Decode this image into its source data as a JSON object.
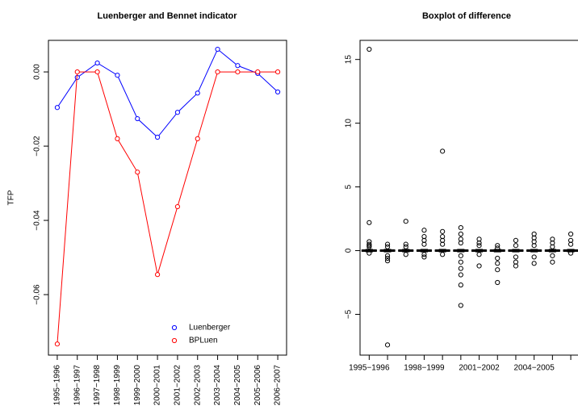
{
  "chart_data": [
    {
      "type": "line",
      "title": "Luenberger and Bennet indicator",
      "y_label": "TFP",
      "categories": [
        "1995−1996",
        "1996−1997",
        "1997−1998",
        "1998−1999",
        "1999−2000",
        "2000−2001",
        "2001−2002",
        "2002−2003",
        "2003−2004",
        "2004−2005",
        "2005−2006",
        "2006−2007"
      ],
      "series": [
        {
          "name": "Luenberger",
          "color": "#0000ff",
          "values": [
            -0.0096,
            -0.0015,
            0.0024,
            -0.0009,
            -0.0126,
            -0.0176,
            -0.0109,
            -0.0057,
            0.0061,
            0.0017,
            -0.0004,
            -0.0054
          ]
        },
        {
          "name": "BPLuen",
          "color": "#ff0000",
          "values": [
            -0.0733,
            0,
            0,
            -0.018,
            -0.027,
            -0.0546,
            -0.0363,
            -0.018,
            0,
            0,
            0,
            0
          ]
        }
      ],
      "ylim": [
        -0.0763,
        0.0085
      ],
      "yticks": [
        {
          "value": 0,
          "label": "0.00"
        },
        {
          "value": -0.02,
          "label": "−0.02"
        },
        {
          "value": -0.04,
          "label": "−0.04"
        },
        {
          "value": -0.06,
          "label": "−0.06"
        }
      ],
      "legend": "bottomright"
    },
    {
      "type": "box",
      "title": "Boxplot of difference",
      "color": "#000000",
      "categories": [
        "1995−1996",
        null,
        null,
        "1998−1999",
        null,
        null,
        "2001−2002",
        null,
        null,
        "2004−2005",
        null,
        null
      ],
      "boxes": [
        {
          "q1": -0.05,
          "median": 0,
          "q3": 0.05,
          "whisker_low": -0.1,
          "whisker_high": 0.1,
          "outliers": [
            15.8,
            2.2,
            0.7,
            0.5,
            0.4,
            0.3,
            -0.2
          ]
        },
        {
          "q1": -0.05,
          "median": 0,
          "q3": 0.05,
          "whisker_low": -0.1,
          "whisker_high": 0.1,
          "outliers": [
            0.5,
            0.3,
            -0.4,
            -0.6,
            -0.8,
            -7.4
          ]
        },
        {
          "q1": -0.05,
          "median": 0,
          "q3": 0.05,
          "whisker_low": -0.1,
          "whisker_high": 0.1,
          "outliers": [
            2.3,
            0.5,
            0.3,
            -0.3
          ]
        },
        {
          "q1": -0.05,
          "median": 0,
          "q3": 0.05,
          "whisker_low": -0.1,
          "whisker_high": 0.1,
          "outliers": [
            1.6,
            1.1,
            0.8,
            0.5,
            -0.3,
            -0.5
          ]
        },
        {
          "q1": -0.05,
          "median": 0,
          "q3": 0.05,
          "whisker_low": -0.1,
          "whisker_high": 0.1,
          "outliers": [
            7.8,
            1.5,
            1.1,
            0.8,
            0.5,
            -0.3
          ]
        },
        {
          "q1": -0.05,
          "median": 0,
          "q3": 0.05,
          "whisker_low": -0.1,
          "whisker_high": 0.1,
          "outliers": [
            1.8,
            1.3,
            0.9,
            0.6,
            -0.4,
            -0.9,
            -1.4,
            -1.9,
            -2.7,
            -4.3
          ]
        },
        {
          "q1": -0.05,
          "median": 0,
          "q3": 0.05,
          "whisker_low": -0.1,
          "whisker_high": 0.1,
          "outliers": [
            0.9,
            0.6,
            0.4,
            -0.3,
            -1.2
          ]
        },
        {
          "q1": -0.05,
          "median": 0,
          "q3": 0.05,
          "whisker_low": -0.1,
          "whisker_high": 0.1,
          "outliers": [
            0.4,
            0.2,
            -0.6,
            -1.0,
            -1.5,
            -2.5
          ]
        },
        {
          "q1": -0.05,
          "median": 0,
          "q3": 0.05,
          "whisker_low": -0.1,
          "whisker_high": 0.1,
          "outliers": [
            0.8,
            0.4,
            -0.5,
            -0.9,
            -1.2
          ]
        },
        {
          "q1": -0.05,
          "median": 0,
          "q3": 0.05,
          "whisker_low": -0.1,
          "whisker_high": 0.1,
          "outliers": [
            1.3,
            1.0,
            0.7,
            0.4,
            -0.5,
            -1.0
          ]
        },
        {
          "q1": -0.05,
          "median": 0,
          "q3": 0.05,
          "whisker_low": -0.1,
          "whisker_high": 0.1,
          "outliers": [
            0.9,
            0.6,
            0.3,
            -0.4,
            -0.9
          ]
        },
        {
          "q1": -0.05,
          "median": 0,
          "q3": 0.05,
          "whisker_low": -0.1,
          "whisker_high": 0.1,
          "outliers": [
            1.3,
            0.8,
            0.5,
            -0.2
          ]
        }
      ],
      "ylim": [
        -8.2,
        16.5
      ],
      "yticks": [
        {
          "value": -5,
          "label": "−5"
        },
        0,
        5,
        10,
        15
      ]
    }
  ]
}
